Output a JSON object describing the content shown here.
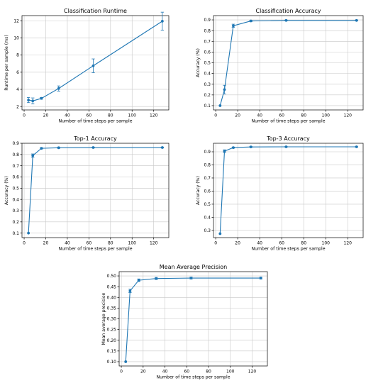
{
  "chart_data": [
    {
      "type": "line",
      "title": "Classification Runtime",
      "xlabel": "Number of time steps per sample",
      "ylabel": "Runtime per sample (ms)",
      "xlim": [
        -2,
        134
      ],
      "ylim": [
        1.6,
        12.6
      ],
      "xticks": [
        0,
        20,
        40,
        60,
        80,
        100,
        120
      ],
      "yticks": [
        2,
        4,
        6,
        8,
        10,
        12
      ],
      "grid": true,
      "series": [
        {
          "x": [
            4,
            8,
            16,
            32,
            64,
            128
          ],
          "y": [
            2.75,
            2.65,
            2.95,
            4.1,
            6.75,
            11.95
          ],
          "err": [
            0.3,
            0.35,
            0.1,
            0.3,
            0.8,
            1.05
          ]
        }
      ]
    },
    {
      "type": "line",
      "title": "Classification Accuracy",
      "xlabel": "Number of time steps per sample",
      "ylabel": "Accuracy (%)",
      "xlim": [
        -2,
        134
      ],
      "ylim": [
        0.06,
        0.94
      ],
      "xticks": [
        0,
        20,
        40,
        60,
        80,
        100,
        120
      ],
      "yticks": [
        0.1,
        0.2,
        0.3,
        0.4,
        0.5,
        0.6,
        0.7,
        0.8,
        0.9
      ],
      "grid": true,
      "series": [
        {
          "x": [
            4,
            8,
            16,
            32,
            64,
            128
          ],
          "y": [
            0.1,
            0.25,
            0.845,
            0.89,
            0.895,
            0.895
          ],
          "err": [
            0.0,
            0.04,
            0.015,
            0.005,
            0.003,
            0.003
          ]
        }
      ]
    },
    {
      "type": "line",
      "title": "Top-1 Accuracy",
      "xlabel": "Number of time steps per sample",
      "ylabel": "Accuracy (%)",
      "xlim": [
        -2,
        134
      ],
      "ylim": [
        0.06,
        0.9
      ],
      "xticks": [
        0,
        20,
        40,
        60,
        80,
        100,
        120
      ],
      "yticks": [
        0.1,
        0.2,
        0.3,
        0.4,
        0.5,
        0.6,
        0.7,
        0.8,
        0.9
      ],
      "grid": true,
      "series": [
        {
          "x": [
            4,
            8,
            16,
            32,
            64,
            128
          ],
          "y": [
            0.1,
            0.79,
            0.855,
            0.86,
            0.862,
            0.862
          ],
          "err": [
            0.0,
            0.015,
            0.006,
            0.004,
            0.003,
            0.003
          ]
        }
      ]
    },
    {
      "type": "line",
      "title": "Top-3 Accuracy",
      "xlabel": "Number of time steps per sample",
      "ylabel": "Accuracy (%)",
      "xlim": [
        -2,
        134
      ],
      "ylim": [
        0.245,
        0.965
      ],
      "xticks": [
        0,
        20,
        40,
        60,
        80,
        100,
        120
      ],
      "yticks": [
        0.3,
        0.4,
        0.5,
        0.6,
        0.7,
        0.8,
        0.9
      ],
      "grid": true,
      "series": [
        {
          "x": [
            4,
            8,
            16,
            32,
            64,
            128
          ],
          "y": [
            0.275,
            0.905,
            0.932,
            0.937,
            0.938,
            0.938
          ],
          "err": [
            0.0,
            0.01,
            0.004,
            0.003,
            0.002,
            0.002
          ]
        }
      ]
    },
    {
      "type": "line",
      "title": "Mean Average Precision",
      "xlabel": "Number of time steps per sample",
      "ylabel": "Mean average precision",
      "xlim": [
        -2,
        134
      ],
      "ylim": [
        0.08,
        0.52
      ],
      "xticks": [
        0,
        20,
        40,
        60,
        80,
        100,
        120
      ],
      "yticks": [
        0.1,
        0.15,
        0.2,
        0.25,
        0.3,
        0.35,
        0.4,
        0.45,
        0.5
      ],
      "grid": true,
      "series": [
        {
          "x": [
            4,
            8,
            16,
            32,
            64,
            128
          ],
          "y": [
            0.1,
            0.43,
            0.48,
            0.488,
            0.49,
            0.49
          ],
          "err": [
            0.0,
            0.008,
            0.006,
            0.005,
            0.004,
            0.004
          ]
        }
      ]
    }
  ]
}
